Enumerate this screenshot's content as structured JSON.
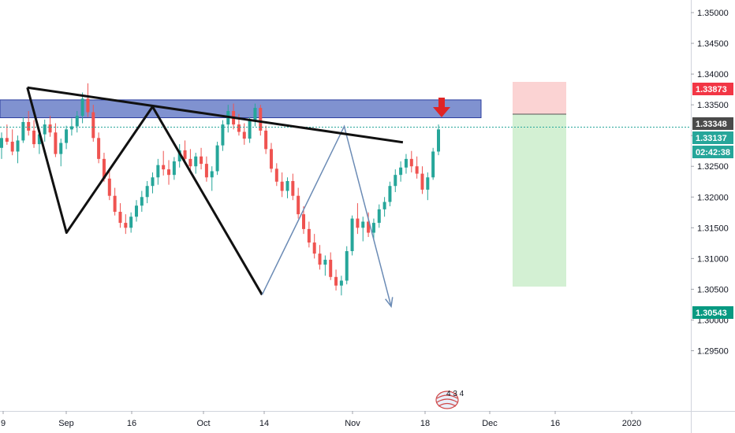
{
  "chart_data": {
    "type": "candlestick",
    "y_axis": {
      "ticks": [
        "1.35000",
        "1.34500",
        "1.34000",
        "1.33500",
        "1.33000",
        "1.32500",
        "1.32000",
        "1.31500",
        "1.31000",
        "1.30500",
        "1.30000",
        "1.29500"
      ],
      "ylim": [
        1.2915,
        1.3528
      ]
    },
    "x_axis": {
      "ticks": [
        "9",
        "Sep",
        "16",
        "Oct",
        "14",
        "Nov",
        "18",
        "Dec",
        "16",
        "2020"
      ]
    },
    "price_tags": [
      {
        "value": "1.33873",
        "color": "#f23645"
      },
      {
        "value": "1.33348",
        "color": "#4a4a4a"
      },
      {
        "value": "1.33137",
        "color": "#26a69a"
      },
      {
        "value": "02:42:38",
        "color": "#26a69a"
      },
      {
        "value": "1.30543",
        "color": "#089981"
      }
    ],
    "current_price": 1.33137,
    "resistance_zone": [
      1.3329,
      1.3358
    ],
    "trade": {
      "stop": 1.33873,
      "entry": 1.33348,
      "target": 1.30543
    },
    "trendline": {
      "from": [
        "2019-08-31",
        1.3378
      ],
      "to": [
        "2019-12-05",
        1.3289
      ]
    },
    "pattern": [
      [
        "2019-08-31",
        1.3378
      ],
      [
        "2019-09-10",
        1.3142
      ],
      [
        "2019-10-02",
        1.3347
      ],
      [
        "2019-10-30",
        1.3041
      ],
      [
        "2019-11-20",
        1.3315
      ],
      [
        "2019-12-02",
        1.3022
      ]
    ],
    "candles": [
      [
        1.328,
        1.3305,
        1.3262,
        1.3296
      ],
      [
        1.3296,
        1.3318,
        1.3285,
        1.329
      ],
      [
        1.329,
        1.331,
        1.3268,
        1.3274
      ],
      [
        1.3274,
        1.33,
        1.3255,
        1.3292
      ],
      [
        1.3292,
        1.333,
        1.3288,
        1.3322
      ],
      [
        1.3322,
        1.334,
        1.33,
        1.3308
      ],
      [
        1.3308,
        1.3325,
        1.328,
        1.3286
      ],
      [
        1.3286,
        1.3312,
        1.327,
        1.3302
      ],
      [
        1.3302,
        1.3326,
        1.329,
        1.3318
      ],
      [
        1.3318,
        1.3332,
        1.3298,
        1.3305
      ],
      [
        1.3305,
        1.332,
        1.3265,
        1.327
      ],
      [
        1.327,
        1.3295,
        1.325,
        1.3288
      ],
      [
        1.3288,
        1.3316,
        1.3278,
        1.331
      ],
      [
        1.331,
        1.3328,
        1.33,
        1.3315
      ],
      [
        1.3315,
        1.334,
        1.3305,
        1.3332
      ],
      [
        1.3332,
        1.337,
        1.332,
        1.336
      ],
      [
        1.336,
        1.3385,
        1.333,
        1.3338
      ],
      [
        1.3338,
        1.335,
        1.329,
        1.3296
      ],
      [
        1.3296,
        1.3305,
        1.3255,
        1.3262
      ],
      [
        1.3262,
        1.3272,
        1.3225,
        1.323
      ],
      [
        1.323,
        1.3242,
        1.3195,
        1.3202
      ],
      [
        1.3202,
        1.3215,
        1.317,
        1.3176
      ],
      [
        1.3176,
        1.319,
        1.315,
        1.3158
      ],
      [
        1.3158,
        1.3172,
        1.314,
        1.315
      ],
      [
        1.315,
        1.3175,
        1.3142,
        1.3168
      ],
      [
        1.3168,
        1.3195,
        1.316,
        1.3186
      ],
      [
        1.3186,
        1.321,
        1.3176,
        1.32
      ],
      [
        1.32,
        1.3226,
        1.319,
        1.3218
      ],
      [
        1.3218,
        1.324,
        1.3206,
        1.3232
      ],
      [
        1.3232,
        1.3262,
        1.322,
        1.3252
      ],
      [
        1.3252,
        1.3275,
        1.3235,
        1.3245
      ],
      [
        1.3245,
        1.326,
        1.322,
        1.3236
      ],
      [
        1.3236,
        1.3265,
        1.3228,
        1.3258
      ],
      [
        1.3258,
        1.3286,
        1.3248,
        1.3276
      ],
      [
        1.3276,
        1.3292,
        1.3255,
        1.3262
      ],
      [
        1.3262,
        1.3278,
        1.324,
        1.325
      ],
      [
        1.325,
        1.3272,
        1.3238,
        1.3266
      ],
      [
        1.3266,
        1.328,
        1.3245,
        1.3254
      ],
      [
        1.3254,
        1.3266,
        1.3225,
        1.3232
      ],
      [
        1.3232,
        1.325,
        1.321,
        1.3242
      ],
      [
        1.3242,
        1.329,
        1.3236,
        1.3284
      ],
      [
        1.3284,
        1.3325,
        1.3275,
        1.3318
      ],
      [
        1.3318,
        1.335,
        1.3305,
        1.334
      ],
      [
        1.334,
        1.3352,
        1.331,
        1.3318
      ],
      [
        1.3318,
        1.3335,
        1.33,
        1.3306
      ],
      [
        1.3306,
        1.332,
        1.3285,
        1.3295
      ],
      [
        1.3295,
        1.333,
        1.3288,
        1.3324
      ],
      [
        1.3324,
        1.3352,
        1.3315,
        1.3345
      ],
      [
        1.3345,
        1.335,
        1.33,
        1.3308
      ],
      [
        1.3308,
        1.3316,
        1.327,
        1.3278
      ],
      [
        1.3278,
        1.3288,
        1.324,
        1.3246
      ],
      [
        1.3246,
        1.3255,
        1.3218,
        1.3225
      ],
      [
        1.3225,
        1.324,
        1.32,
        1.321
      ],
      [
        1.321,
        1.3232,
        1.3198,
        1.3226
      ],
      [
        1.3226,
        1.3238,
        1.3195,
        1.3202
      ],
      [
        1.3202,
        1.3215,
        1.3165,
        1.3172
      ],
      [
        1.3172,
        1.3185,
        1.314,
        1.3148
      ],
      [
        1.3148,
        1.316,
        1.3118,
        1.3126
      ],
      [
        1.3126,
        1.314,
        1.31,
        1.3108
      ],
      [
        1.3108,
        1.3122,
        1.3082,
        1.309
      ],
      [
        1.309,
        1.3105,
        1.3072,
        1.3098
      ],
      [
        1.3098,
        1.311,
        1.3065,
        1.307
      ],
      [
        1.307,
        1.3082,
        1.3048,
        1.3056
      ],
      [
        1.3056,
        1.3072,
        1.304,
        1.3064
      ],
      [
        1.3064,
        1.312,
        1.3058,
        1.3112
      ],
      [
        1.3112,
        1.317,
        1.3105,
        1.3165
      ],
      [
        1.3165,
        1.319,
        1.314,
        1.315
      ],
      [
        1.315,
        1.3168,
        1.3128,
        1.316
      ],
      [
        1.316,
        1.3175,
        1.3135,
        1.3142
      ],
      [
        1.3142,
        1.3165,
        1.313,
        1.3158
      ],
      [
        1.3158,
        1.3188,
        1.315,
        1.318
      ],
      [
        1.318,
        1.32,
        1.3168,
        1.3192
      ],
      [
        1.3192,
        1.3225,
        1.3185,
        1.3218
      ],
      [
        1.3218,
        1.3245,
        1.3208,
        1.3236
      ],
      [
        1.3236,
        1.3258,
        1.3225,
        1.3248
      ],
      [
        1.3248,
        1.327,
        1.3238,
        1.3262
      ],
      [
        1.3262,
        1.3275,
        1.324,
        1.325
      ],
      [
        1.325,
        1.3266,
        1.323,
        1.3238
      ],
      [
        1.3238,
        1.325,
        1.3205,
        1.3212
      ],
      [
        1.3212,
        1.324,
        1.3195,
        1.3232
      ],
      [
        1.3232,
        1.328,
        1.3228,
        1.3274
      ],
      [
        1.3274,
        1.3318,
        1.3268,
        1.331
      ]
    ]
  },
  "watermark": {
    "text": "4 3 4"
  },
  "colors": {
    "up": "#26a69a",
    "down": "#ef5350",
    "zone_fill": "#6a7fc8",
    "zone_border": "#2b3d9e",
    "trendline": "#111111",
    "pattern": "#111111",
    "projection": "#6b8bb5",
    "signal_arrow": "#e02424",
    "stop_fill": "#fbd3d3",
    "target_fill": "#d3f0d3",
    "current_line": "#26a69a",
    "axis_bg": "#ffffff",
    "axis_border": "#d1d4dc"
  }
}
